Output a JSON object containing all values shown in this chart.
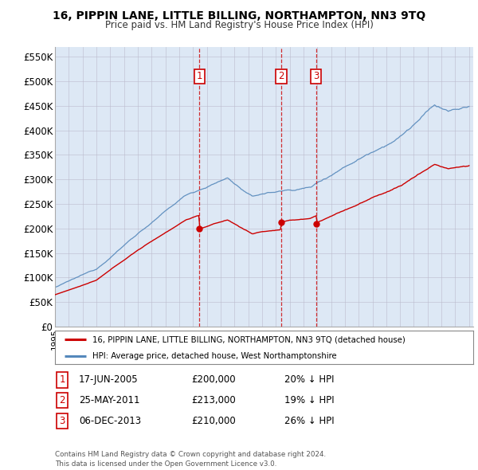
{
  "title": "16, PIPPIN LANE, LITTLE BILLING, NORTHAMPTON, NN3 9TQ",
  "subtitle": "Price paid vs. HM Land Registry's House Price Index (HPI)",
  "ylabel_ticks": [
    "£0",
    "£50K",
    "£100K",
    "£150K",
    "£200K",
    "£250K",
    "£300K",
    "£350K",
    "£400K",
    "£450K",
    "£500K",
    "£550K"
  ],
  "ytick_values": [
    0,
    50000,
    100000,
    150000,
    200000,
    250000,
    300000,
    350000,
    400000,
    450000,
    500000,
    550000
  ],
  "sale_dates_year": [
    2005.46,
    2011.4,
    2013.92
  ],
  "sale_prices": [
    200000,
    213000,
    210000
  ],
  "sale_labels": [
    "1",
    "2",
    "3"
  ],
  "legend_line1": "16, PIPPIN LANE, LITTLE BILLING, NORTHAMPTON, NN3 9TQ (detached house)",
  "legend_line2": "HPI: Average price, detached house, West Northamptonshire",
  "table_rows": [
    {
      "num": "1",
      "date": "17-JUN-2005",
      "price": "£200,000",
      "hpi": "20% ↓ HPI"
    },
    {
      "num": "2",
      "date": "25-MAY-2011",
      "price": "£213,000",
      "hpi": "19% ↓ HPI"
    },
    {
      "num": "3",
      "date": "06-DEC-2013",
      "price": "£210,000",
      "hpi": "26% ↓ HPI"
    }
  ],
  "footer": "Contains HM Land Registry data © Crown copyright and database right 2024.\nThis data is licensed under the Open Government Licence v3.0.",
  "red_line_color": "#cc0000",
  "blue_line_color": "#5588bb",
  "vline_color": "#cc0000",
  "background_color": "#ffffff",
  "chart_bg_color": "#dde8f5",
  "grid_color": "#bbbbcc"
}
